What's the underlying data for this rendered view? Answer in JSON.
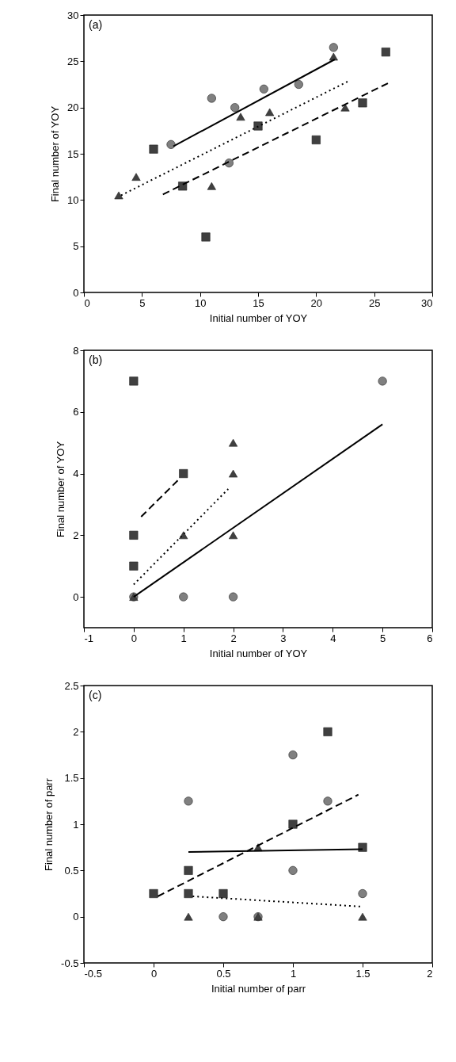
{
  "chart_data": [
    {
      "type": "scatter",
      "annotations": [
        "(a)"
      ],
      "xlabel": "Initial number of YOY",
      "ylabel": "Final number of YOY",
      "xlim": [
        0,
        30
      ],
      "xticks": [
        0,
        5,
        10,
        15,
        20,
        25,
        30
      ],
      "ylim": [
        0,
        30
      ],
      "yticks": [
        0,
        5,
        10,
        15,
        20,
        25,
        30
      ],
      "grid": false,
      "series": [
        {
          "type": "scatter",
          "marker": "circle",
          "color": "#808080",
          "x": [
            7.5,
            11,
            13,
            15.5,
            18.5,
            21.5,
            12.5
          ],
          "values": [
            16,
            21,
            20,
            22,
            22.5,
            26.5,
            14
          ]
        },
        {
          "type": "scatter",
          "marker": "triangle",
          "color": "#404040",
          "x": [
            3,
            4.5,
            11,
            13.5,
            16,
            21.5,
            22.5
          ],
          "values": [
            10.5,
            12.5,
            11.5,
            19,
            19.5,
            25.5,
            20
          ]
        },
        {
          "type": "scatter",
          "marker": "square",
          "color": "#404040",
          "x": [
            6,
            8.5,
            10.5,
            15,
            20,
            24,
            26
          ],
          "values": [
            15.5,
            11.5,
            6,
            18,
            16.5,
            20.5,
            26
          ]
        },
        {
          "type": "line",
          "line_style": "solid",
          "color": "#000000",
          "x": [
            7.7,
            21.6
          ],
          "values": [
            15.8,
            25.2
          ]
        },
        {
          "type": "line",
          "line_style": "dotted",
          "color": "#000000",
          "x": [
            3.2,
            22.7
          ],
          "values": [
            10.5,
            22.8
          ]
        },
        {
          "type": "line",
          "line_style": "dashed",
          "color": "#000000",
          "x": [
            6.8,
            26.3
          ],
          "values": [
            10.6,
            22.7
          ]
        }
      ]
    },
    {
      "type": "scatter",
      "annotations": [
        "(b)"
      ],
      "xlabel": "Initial number of YOY",
      "ylabel": "Final number of YOY",
      "xlim": [
        -1,
        6
      ],
      "xticks": [
        -1,
        0,
        1,
        2,
        3,
        4,
        5,
        6
      ],
      "ylim": [
        -1,
        8
      ],
      "yticks": [
        0,
        2,
        4,
        6,
        8
      ],
      "grid": false,
      "series": [
        {
          "type": "scatter",
          "marker": "circle",
          "color": "#808080",
          "x": [
            0,
            1,
            2,
            5
          ],
          "values": [
            0,
            0,
            0,
            7
          ]
        },
        {
          "type": "scatter",
          "marker": "triangle",
          "color": "#404040",
          "x": [
            0,
            1,
            2,
            2,
            2
          ],
          "values": [
            0,
            2,
            2,
            4,
            5
          ]
        },
        {
          "type": "scatter",
          "marker": "square",
          "color": "#404040",
          "x": [
            0,
            0,
            0,
            1
          ],
          "values": [
            7,
            2,
            1,
            4
          ]
        },
        {
          "type": "line",
          "line_style": "solid",
          "color": "#000000",
          "x": [
            0,
            5
          ],
          "values": [
            0,
            5.6
          ]
        },
        {
          "type": "line",
          "line_style": "dotted",
          "color": "#000000",
          "x": [
            0,
            1.9
          ],
          "values": [
            0.4,
            3.5
          ]
        },
        {
          "type": "line",
          "line_style": "dashed",
          "color": "#000000",
          "x": [
            0.15,
            0.9
          ],
          "values": [
            2.6,
            3.8
          ]
        }
      ]
    },
    {
      "type": "scatter",
      "annotations": [
        "(c)"
      ],
      "xlabel": "Initial number of parr",
      "ylabel": "Final number of parr",
      "xlim": [
        -0.5,
        2
      ],
      "xticks": [
        -0.5,
        0,
        0.5,
        1,
        1.5,
        2
      ],
      "ylim": [
        -0.5,
        2.5
      ],
      "yticks": [
        -0.5,
        0,
        0.5,
        1,
        1.5,
        2,
        2.5
      ],
      "grid": false,
      "series": [
        {
          "type": "scatter",
          "marker": "circle",
          "color": "#808080",
          "x": [
            0.25,
            1,
            1.25,
            1,
            1.5,
            0.5,
            0.75
          ],
          "values": [
            1.25,
            1.75,
            1.25,
            0.5,
            0.25,
            0,
            0
          ]
        },
        {
          "type": "scatter",
          "marker": "triangle",
          "color": "#404040",
          "x": [
            0.25,
            0.75,
            1.5,
            0.75
          ],
          "values": [
            0,
            0,
            0,
            0.75
          ]
        },
        {
          "type": "scatter",
          "marker": "square",
          "color": "#404040",
          "x": [
            0,
            0.25,
            0.25,
            0.5,
            1,
            1.25,
            1.5
          ],
          "values": [
            0.25,
            0.5,
            0.25,
            0.25,
            1,
            2,
            0.75
          ]
        },
        {
          "type": "line",
          "line_style": "solid",
          "color": "#000000",
          "x": [
            0.25,
            1.5
          ],
          "values": [
            0.7,
            0.73
          ]
        },
        {
          "type": "line",
          "line_style": "dotted",
          "color": "#000000",
          "x": [
            0.28,
            1.49
          ],
          "values": [
            0.22,
            0.11
          ]
        },
        {
          "type": "line",
          "line_style": "dashed",
          "color": "#000000",
          "x": [
            0.03,
            1.47
          ],
          "values": [
            0.22,
            1.32
          ]
        }
      ]
    }
  ]
}
